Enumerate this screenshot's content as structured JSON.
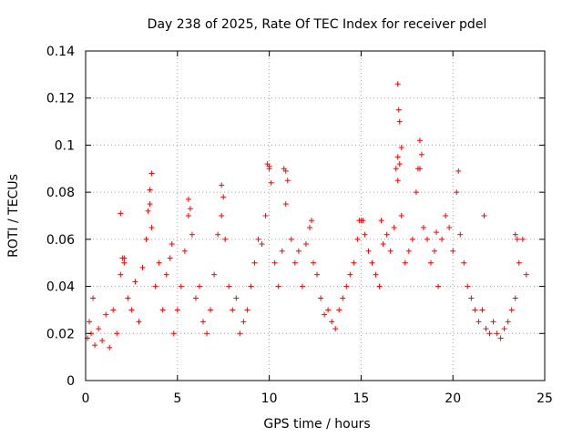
{
  "chart_data": {
    "type": "scatter",
    "title": "Day 238 of 2025, Rate Of TEC Index for receiver pdel",
    "xlabel": "GPS time / hours",
    "ylabel": "ROTI / TECUs",
    "xlim": [
      0,
      25
    ],
    "ylim": [
      0,
      0.14
    ],
    "x_ticks": [
      0,
      5,
      10,
      15,
      20,
      25
    ],
    "x_tick_labels": [
      "0",
      "5",
      "10",
      "15",
      "20",
      "25"
    ],
    "y_ticks": [
      0,
      0.02,
      0.04,
      0.06,
      0.08,
      0.1,
      0.12,
      0.14
    ],
    "y_tick_labels": [
      "0",
      "0.02",
      "0.04",
      "0.06",
      "0.08",
      "0.1",
      "0.12",
      "0.14"
    ],
    "grid": true,
    "marker": "plus",
    "color": "#ff0000",
    "series": [
      {
        "x": [
          0.1,
          0.2,
          0.3,
          0.5,
          0.7,
          0.9,
          1.1,
          1.3,
          1.5,
          1.7,
          1.9,
          2.0,
          2.1,
          2.3,
          2.5,
          2.7,
          2.9,
          3.1,
          3.3,
          3.4,
          3.5,
          3.6,
          3.8,
          4.0,
          4.2,
          4.4,
          4.6,
          4.8,
          5.0,
          5.2,
          5.4,
          5.6,
          5.7,
          5.8,
          6.0,
          6.2,
          6.4,
          6.6,
          6.8,
          7.0,
          7.2,
          7.4,
          7.5,
          7.6,
          7.8,
          8.0,
          8.2,
          8.4,
          8.6,
          8.8,
          9.0,
          9.2,
          9.4,
          9.6,
          9.8,
          10.0,
          10.1,
          10.3,
          10.5,
          10.7,
          10.9,
          11.0,
          11.2,
          11.4,
          11.6,
          11.8,
          12.0,
          12.2,
          12.4,
          12.6,
          12.8,
          13.0,
          13.2,
          13.4,
          13.6,
          13.8,
          14.0,
          14.2,
          14.4,
          14.6,
          14.8,
          15.0,
          15.2,
          15.4,
          15.6,
          15.8,
          16.0,
          16.2,
          16.4,
          16.6,
          16.8,
          17.0,
          17.1,
          17.2,
          17.4,
          17.6,
          17.8,
          18.0,
          18.2,
          18.4,
          18.6,
          18.8,
          19.0,
          19.2,
          19.4,
          19.6,
          19.8,
          20.0,
          20.2,
          20.4,
          20.6,
          20.8,
          21.0,
          21.2,
          21.4,
          21.6,
          21.8,
          22.0,
          22.2,
          22.4,
          22.6,
          22.8,
          23.0,
          23.2,
          23.4,
          23.6,
          23.8,
          24.0,
          1.9,
          2.1,
          3.5,
          3.6,
          5.6,
          7.4,
          9.9,
          10.0,
          10.9,
          10.8,
          17.0,
          17.05,
          17.1,
          17.2,
          18.2,
          18.3,
          20.3,
          21.7,
          16.9,
          17.0,
          18.1,
          0.4,
          4.7,
          12.3,
          14.9,
          15.1,
          16.1,
          19.1,
          23.4,
          23.5
        ],
        "y": [
          0.018,
          0.025,
          0.02,
          0.015,
          0.022,
          0.017,
          0.028,
          0.014,
          0.03,
          0.02,
          0.045,
          0.052,
          0.05,
          0.035,
          0.03,
          0.042,
          0.025,
          0.048,
          0.06,
          0.072,
          0.075,
          0.065,
          0.04,
          0.05,
          0.03,
          0.045,
          0.052,
          0.02,
          0.03,
          0.04,
          0.055,
          0.07,
          0.073,
          0.062,
          0.035,
          0.04,
          0.025,
          0.02,
          0.03,
          0.045,
          0.062,
          0.07,
          0.078,
          0.06,
          0.04,
          0.03,
          0.035,
          0.02,
          0.025,
          0.03,
          0.04,
          0.05,
          0.06,
          0.058,
          0.07,
          0.09,
          0.084,
          0.05,
          0.04,
          0.055,
          0.075,
          0.085,
          0.06,
          0.05,
          0.055,
          0.04,
          0.058,
          0.065,
          0.05,
          0.045,
          0.035,
          0.028,
          0.03,
          0.025,
          0.022,
          0.03,
          0.035,
          0.04,
          0.045,
          0.05,
          0.06,
          0.068,
          0.062,
          0.055,
          0.05,
          0.045,
          0.04,
          0.058,
          0.062,
          0.055,
          0.065,
          0.085,
          0.092,
          0.07,
          0.05,
          0.055,
          0.06,
          0.08,
          0.09,
          0.065,
          0.06,
          0.05,
          0.055,
          0.04,
          0.06,
          0.07,
          0.065,
          0.055,
          0.08,
          0.062,
          0.05,
          0.04,
          0.035,
          0.03,
          0.025,
          0.03,
          0.022,
          0.02,
          0.025,
          0.02,
          0.018,
          0.022,
          0.025,
          0.03,
          0.035,
          0.05,
          0.06,
          0.045,
          0.071,
          0.052,
          0.081,
          0.088,
          0.077,
          0.083,
          0.092,
          0.091,
          0.089,
          0.09,
          0.126,
          0.115,
          0.11,
          0.099,
          0.102,
          0.096,
          0.089,
          0.07,
          0.09,
          0.095,
          0.09,
          0.035,
          0.058,
          0.068,
          0.068,
          0.068,
          0.068,
          0.063,
          0.062,
          0.06
        ]
      }
    ]
  }
}
